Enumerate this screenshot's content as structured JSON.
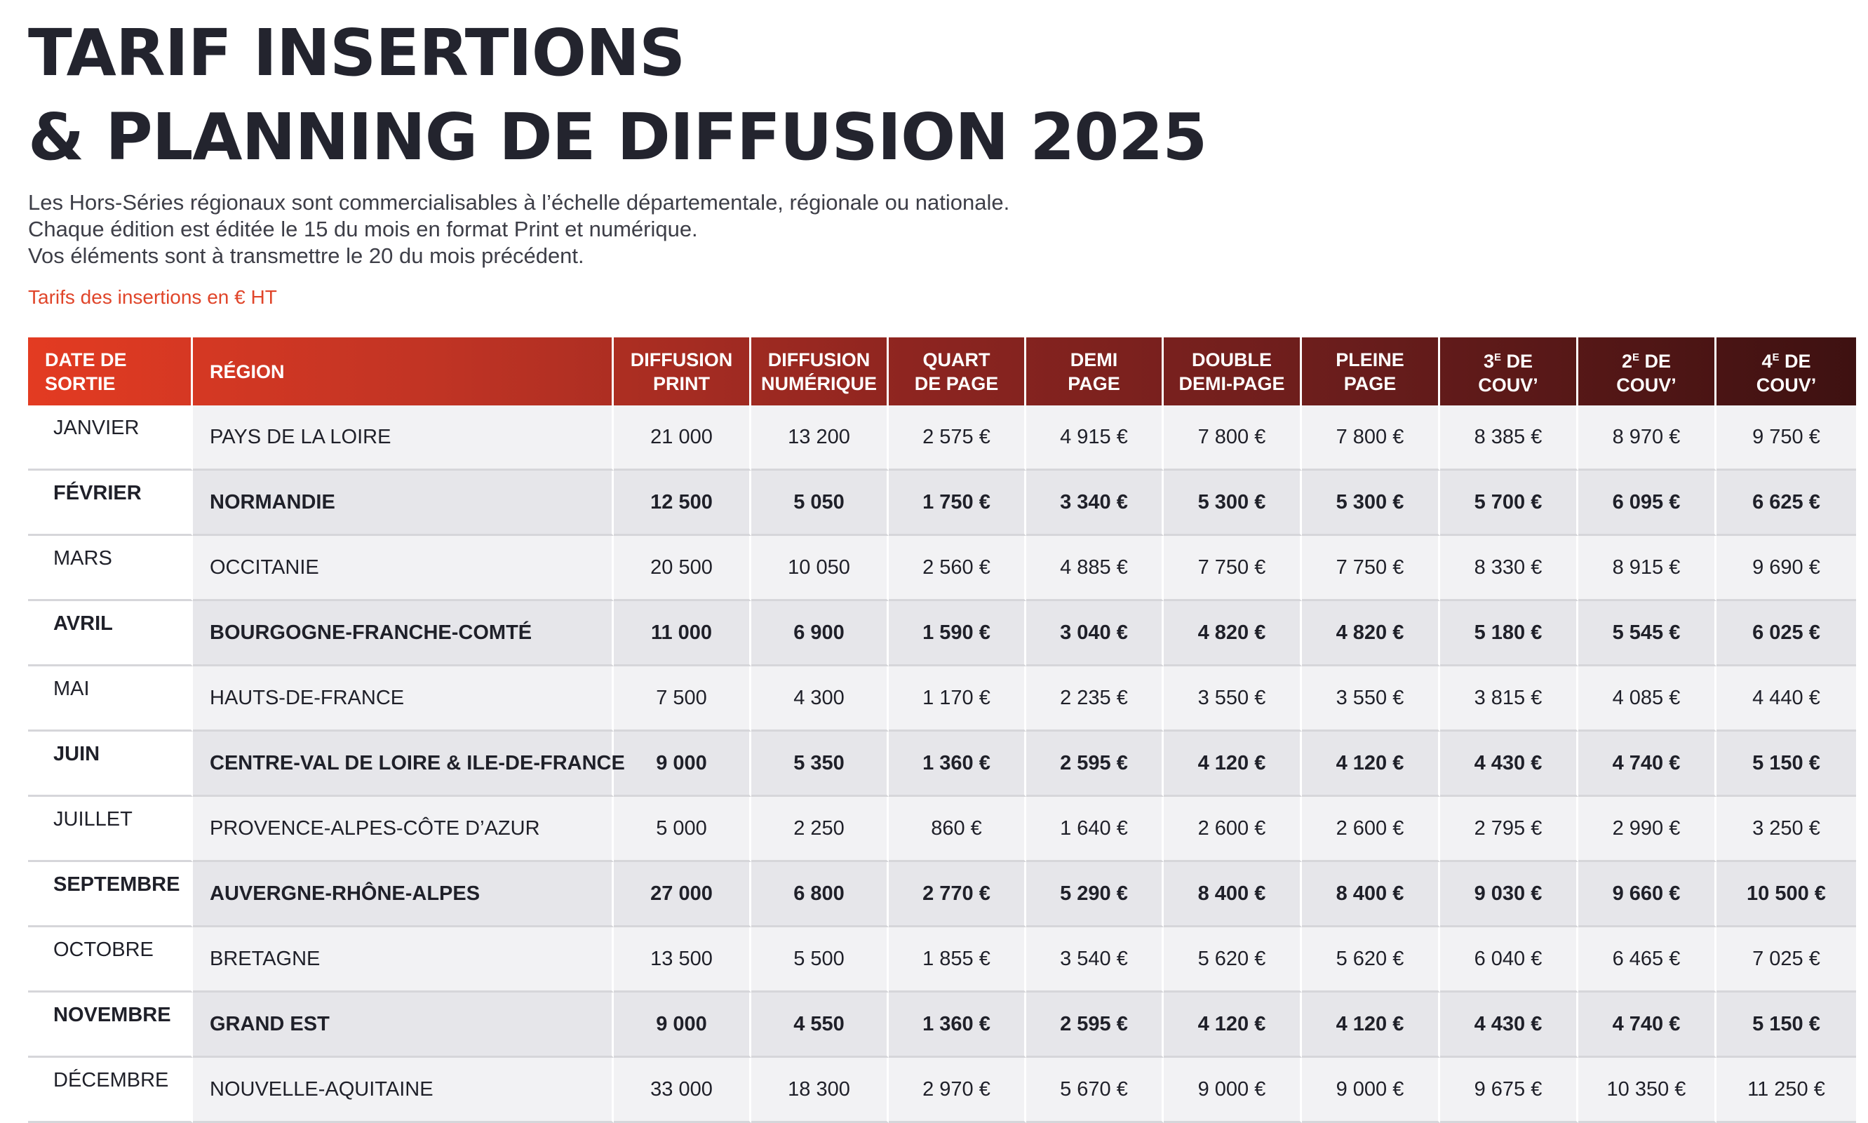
{
  "title": {
    "line1": "TARIF INSERTIONS",
    "line2": "& PLANNING DE DIFFUSION 2025"
  },
  "intro": [
    "Les Hors-Séries régionaux sont commercialisables à l’échelle départementale, régionale ou nationale.",
    "Chaque édition est éditée le 15 du mois en format Print et numérique.",
    "Vos éléments sont à transmettre le 20 du mois précédent."
  ],
  "note": "Tarifs des insertions en € HT",
  "colors": {
    "accent": "#e0452a",
    "header_start": "#e33b22",
    "header_end": "#3e1111",
    "title": "#23242e"
  },
  "table": {
    "headers": {
      "date": [
        "DATE DE",
        "SORTIE"
      ],
      "region": "RÉGION",
      "diffusion_print": [
        "DIFFUSION",
        "PRINT"
      ],
      "diffusion_numerique": [
        "DIFFUSION",
        "NUMÉRIQUE"
      ],
      "quart_page": [
        "QUART",
        "DE PAGE"
      ],
      "demi_page": [
        "DEMI",
        "PAGE"
      ],
      "double_demi_page": [
        "DOUBLE",
        "DEMI-PAGE"
      ],
      "pleine_page": [
        "PLEINE",
        "PAGE"
      ],
      "couv3": {
        "num": "3",
        "sup": "E",
        "rest": " DE",
        "line2": "COUV’"
      },
      "couv2": {
        "num": "2",
        "sup": "E",
        "rest": " DE",
        "line2": "COUV’"
      },
      "couv4": {
        "num": "4",
        "sup": "E",
        "rest": " DE",
        "line2": "COUV’"
      }
    },
    "rows": [
      [
        "JANVIER",
        "PAYS DE LA LOIRE",
        "21 000",
        "13 200",
        "2 575 €",
        "4 915 €",
        "7 800 €",
        "7 800 €",
        "8 385 €",
        "8 970 €",
        "9 750 €"
      ],
      [
        "FÉVRIER",
        "NORMANDIE",
        "12 500",
        "5 050",
        "1 750 €",
        "3 340 €",
        "5 300 €",
        "5 300 €",
        "5 700 €",
        "6 095 €",
        "6 625 €"
      ],
      [
        "MARS",
        "OCCITANIE",
        "20 500",
        "10 050",
        "2 560 €",
        "4 885 €",
        "7 750 €",
        "7 750 €",
        "8 330 €",
        "8 915 €",
        "9 690 €"
      ],
      [
        "AVRIL",
        "BOURGOGNE-FRANCHE-COMTÉ",
        "11 000",
        "6 900",
        "1 590 €",
        "3 040 €",
        "4 820 €",
        "4 820 €",
        "5 180 €",
        "5 545 €",
        "6 025 €"
      ],
      [
        "MAI",
        "HAUTS-DE-FRANCE",
        "7 500",
        "4 300",
        "1 170 €",
        "2 235 €",
        "3 550 €",
        "3 550 €",
        "3 815 €",
        "4 085 €",
        "4 440 €"
      ],
      [
        "JUIN",
        "CENTRE-VAL DE LOIRE & ILE-DE-FRANCE",
        "9 000",
        "5 350",
        "1 360 €",
        "2 595 €",
        "4 120 €",
        "4 120 €",
        "4 430 €",
        "4 740 €",
        "5 150 €"
      ],
      [
        "JUILLET",
        "PROVENCE-ALPES-CÔTE D’AZUR",
        "5 000",
        "2 250",
        "860 €",
        "1 640 €",
        "2 600 €",
        "2 600 €",
        "2 795 €",
        "2 990 €",
        "3 250 €"
      ],
      [
        "SEPTEMBRE",
        "AUVERGNE-RHÔNE-ALPES",
        "27 000",
        "6 800",
        "2 770 €",
        "5 290 €",
        "8 400 €",
        "8 400 €",
        "9 030 €",
        "9 660 €",
        "10 500 €"
      ],
      [
        "OCTOBRE",
        "BRETAGNE",
        "13 500",
        "5 500",
        "1 855 €",
        "3 540 €",
        "5 620 €",
        "5 620 €",
        "6 040 €",
        "6 465 €",
        "7 025 €"
      ],
      [
        "NOVEMBRE",
        "GRAND EST",
        "9 000",
        "4 550",
        "1 360 €",
        "2 595 €",
        "4 120 €",
        "4 120 €",
        "4 430 €",
        "4 740 €",
        "5 150 €"
      ],
      [
        "DÉCEMBRE",
        "NOUVELLE-AQUITAINE",
        "33 000",
        "18 300",
        "2 970 €",
        "5 670 €",
        "9 000 €",
        "9 000 €",
        "9 675 €",
        "10 350 €",
        "11 250 €"
      ]
    ]
  }
}
